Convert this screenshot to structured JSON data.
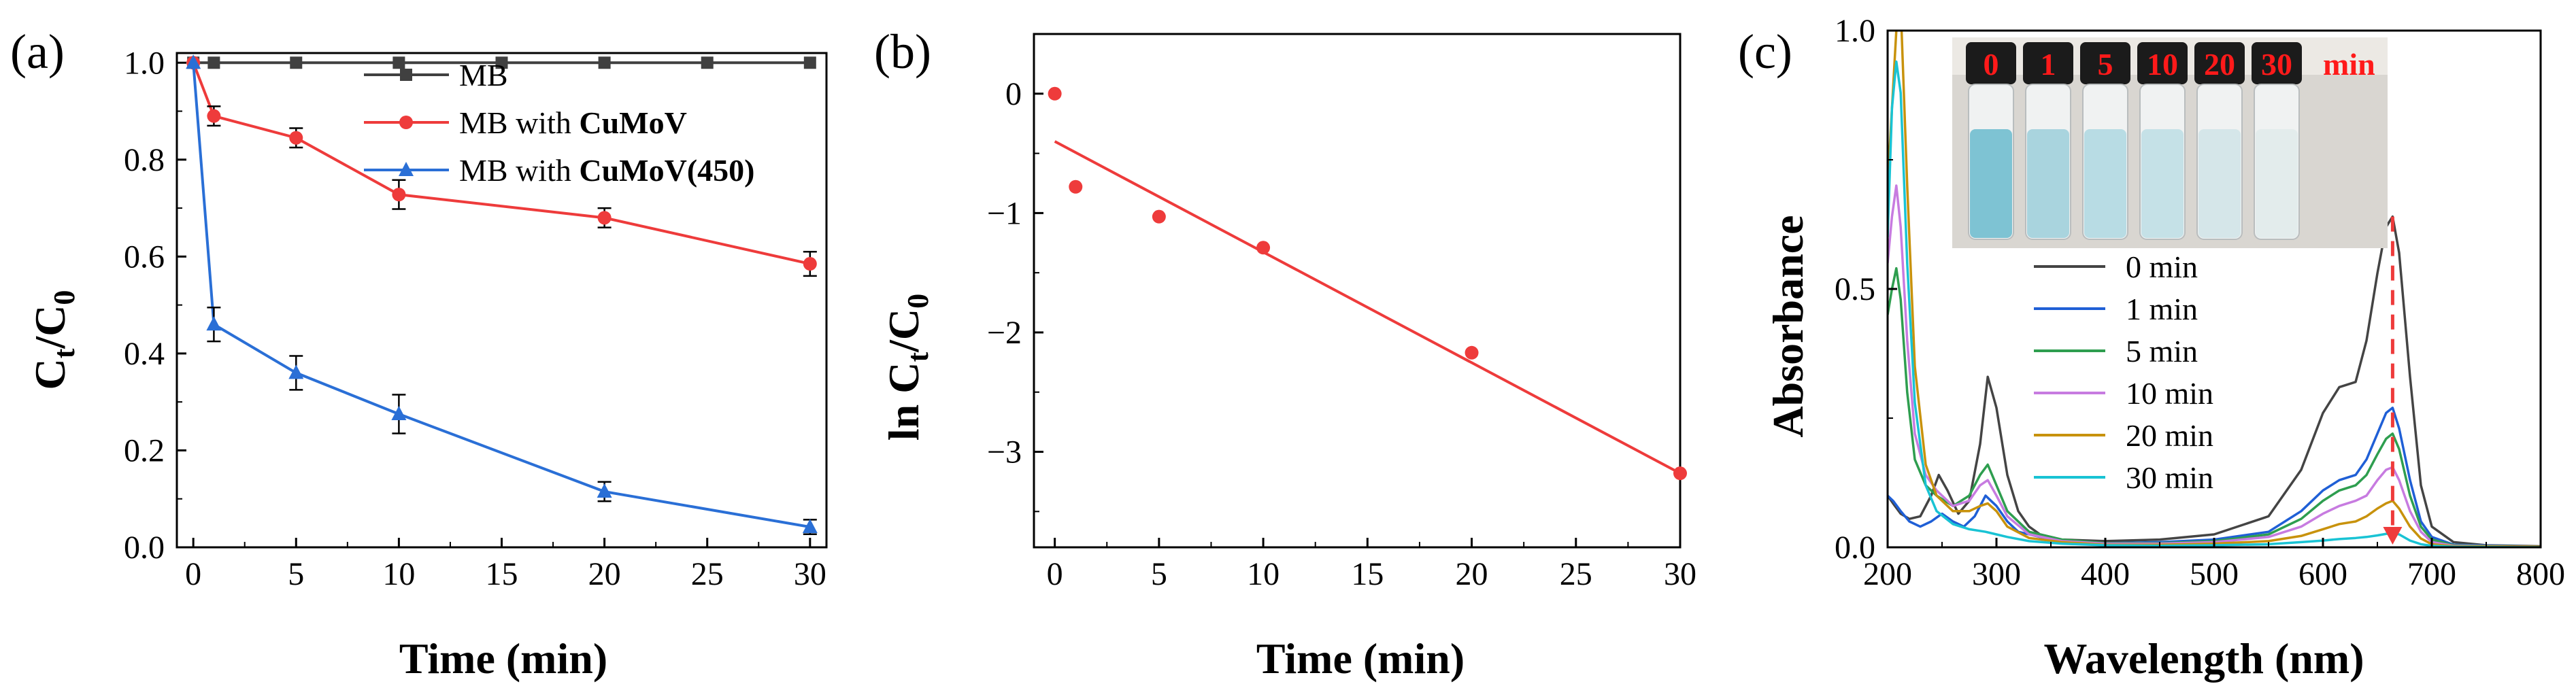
{
  "panels": [
    {
      "id": "a",
      "label": "(a)",
      "xlabel": "Time (min)",
      "ylabel_main": "C",
      "ylabel_sub1": "t",
      "ylabel_mid": "/C",
      "ylabel_sub2": "0",
      "x_ticks": [
        "0",
        "5",
        "10",
        "15",
        "20",
        "25",
        "30"
      ],
      "y_ticks": [
        "0.0",
        "0.2",
        "0.4",
        "0.6",
        "0.8",
        "1.0"
      ]
    },
    {
      "id": "b",
      "label": "(b)",
      "xlabel": "Time  (min)",
      "ylabel_main": "ln C",
      "ylabel_sub1": "t",
      "ylabel_mid": "/C",
      "ylabel_sub2": "0",
      "x_ticks": [
        "0",
        "5",
        "10",
        "15",
        "20",
        "25",
        "30"
      ],
      "y_ticks": [
        "0",
        "−1",
        "−2",
        "−3"
      ]
    },
    {
      "id": "c",
      "label": "(c)",
      "xlabel": "Wavelength (nm)",
      "ylabel": "Absorbance",
      "x_ticks": [
        "200",
        "300",
        "400",
        "500",
        "600",
        "700",
        "800"
      ],
      "y_ticks": [
        "0.0",
        "0.5",
        "1.0"
      ],
      "inset": {
        "vial_labels": [
          "0",
          "1",
          "5",
          "10",
          "20",
          "30"
        ],
        "unit": "min",
        "vial_colors": [
          "#7ec3d3",
          "#a9d4de",
          "#b8dce4",
          "#c5e1e7",
          "#d5e6e9",
          "#e3ecec"
        ]
      }
    }
  ],
  "chart_data": [
    {
      "type": "line",
      "panel": "a",
      "xlabel": "Time (min)",
      "ylabel": "Ct/C0",
      "xlim": [
        0,
        30
      ],
      "ylim": [
        0,
        1.0
      ],
      "legend_position": "top-right",
      "series": [
        {
          "name": "MB",
          "name_plain": "MB",
          "name_bold": "",
          "color": "#404040",
          "marker": "square",
          "x": [
            0,
            1,
            5,
            10,
            15,
            20,
            25,
            30
          ],
          "y": [
            1.0,
            1.0,
            1.0,
            1.0,
            1.0,
            1.0,
            1.0,
            1.0
          ],
          "err": []
        },
        {
          "name": "MB with CuMoV",
          "name_plain": "MB with ",
          "name_bold": "CuMoV",
          "color": "#ee3b3b",
          "marker": "circle",
          "x": [
            0,
            1,
            5,
            10,
            20,
            30
          ],
          "y": [
            1.0,
            0.89,
            0.845,
            0.728,
            0.68,
            0.585
          ],
          "err": [
            0,
            0.02,
            0.02,
            0.03,
            0.02,
            0.025
          ]
        },
        {
          "name": "MB with CuMoV(450)",
          "name_plain": "MB with ",
          "name_bold": "CuMoV(450)",
          "color": "#2a6fd6",
          "marker": "triangle",
          "x": [
            0,
            1,
            5,
            10,
            20,
            30
          ],
          "y": [
            1.0,
            0.46,
            0.36,
            0.275,
            0.115,
            0.042
          ],
          "err": [
            0,
            0.035,
            0.035,
            0.04,
            0.02,
            0.015
          ]
        }
      ]
    },
    {
      "type": "scatter",
      "panel": "b",
      "xlabel": "Time  (min)",
      "ylabel": "ln Ct/C0",
      "xlim": [
        -1,
        30
      ],
      "ylim": [
        -3.8,
        0.5
      ],
      "points": {
        "color": "#ee3b3b",
        "x": [
          0,
          1,
          5,
          10,
          20,
          30
        ],
        "y": [
          0.0,
          -0.78,
          -1.03,
          -1.29,
          -2.17,
          -3.18
        ]
      },
      "fit_line": {
        "color": "#ee3b3b",
        "x": [
          0,
          30
        ],
        "y": [
          -0.4,
          -3.18
        ]
      }
    },
    {
      "type": "line",
      "panel": "c",
      "xlabel": "Wavelength (nm)",
      "ylabel": "Absorbance",
      "xlim": [
        200,
        800
      ],
      "ylim": [
        0,
        1.0
      ],
      "legend_position": "center",
      "series": [
        {
          "name": "0 min",
          "color": "#444444",
          "x": [
            200,
            205,
            212,
            220,
            230,
            240,
            247,
            255,
            265,
            275,
            285,
            292,
            300,
            310,
            320,
            330,
            340,
            360,
            400,
            450,
            500,
            550,
            580,
            600,
            615,
            630,
            640,
            650,
            658,
            664,
            670,
            680,
            690,
            700,
            720,
            750,
            800
          ],
          "y": [
            0.1,
            0.085,
            0.065,
            0.055,
            0.06,
            0.1,
            0.14,
            0.11,
            0.065,
            0.09,
            0.2,
            0.33,
            0.27,
            0.14,
            0.07,
            0.04,
            0.025,
            0.015,
            0.012,
            0.015,
            0.025,
            0.06,
            0.15,
            0.26,
            0.31,
            0.32,
            0.4,
            0.53,
            0.62,
            0.64,
            0.57,
            0.33,
            0.12,
            0.04,
            0.01,
            0.004,
            0.002
          ]
        },
        {
          "name": "1 min",
          "color": "#1f5fd6",
          "x": [
            200,
            205,
            212,
            220,
            230,
            240,
            250,
            260,
            270,
            280,
            290,
            300,
            310,
            320,
            340,
            360,
            400,
            450,
            500,
            550,
            580,
            600,
            615,
            630,
            640,
            650,
            658,
            664,
            670,
            680,
            690,
            700,
            720,
            800
          ],
          "y": [
            0.1,
            0.09,
            0.07,
            0.05,
            0.04,
            0.05,
            0.065,
            0.05,
            0.04,
            0.06,
            0.1,
            0.08,
            0.05,
            0.03,
            0.02,
            0.012,
            0.008,
            0.01,
            0.015,
            0.03,
            0.07,
            0.11,
            0.13,
            0.14,
            0.17,
            0.22,
            0.26,
            0.27,
            0.23,
            0.13,
            0.05,
            0.02,
            0.005,
            0.001
          ]
        },
        {
          "name": "5 min",
          "color": "#2e9e4f",
          "x": [
            200,
            204,
            208,
            212,
            218,
            225,
            235,
            245,
            260,
            275,
            285,
            292,
            300,
            310,
            330,
            360,
            400,
            450,
            500,
            550,
            580,
            600,
            615,
            630,
            640,
            650,
            658,
            664,
            670,
            680,
            690,
            700,
            720,
            800
          ],
          "y": [
            0.45,
            0.5,
            0.54,
            0.48,
            0.3,
            0.17,
            0.12,
            0.1,
            0.08,
            0.1,
            0.14,
            0.16,
            0.12,
            0.07,
            0.03,
            0.015,
            0.008,
            0.008,
            0.012,
            0.025,
            0.055,
            0.09,
            0.11,
            0.12,
            0.14,
            0.18,
            0.21,
            0.22,
            0.19,
            0.1,
            0.04,
            0.015,
            0.004,
            0.001
          ]
        },
        {
          "name": "10 min",
          "color": "#c77be0",
          "x": [
            200,
            204,
            208,
            212,
            218,
            225,
            235,
            245,
            260,
            275,
            285,
            292,
            300,
            310,
            330,
            360,
            400,
            450,
            500,
            550,
            580,
            600,
            615,
            630,
            640,
            650,
            658,
            664,
            670,
            680,
            690,
            700,
            720,
            800
          ],
          "y": [
            0.55,
            0.64,
            0.7,
            0.62,
            0.4,
            0.22,
            0.14,
            0.11,
            0.08,
            0.09,
            0.12,
            0.13,
            0.1,
            0.06,
            0.025,
            0.012,
            0.007,
            0.007,
            0.01,
            0.02,
            0.04,
            0.065,
            0.08,
            0.09,
            0.1,
            0.13,
            0.15,
            0.155,
            0.13,
            0.07,
            0.03,
            0.01,
            0.003,
            0.001
          ]
        },
        {
          "name": "20 min",
          "color": "#c8920c",
          "x": [
            200,
            204,
            208,
            212,
            218,
            225,
            235,
            245,
            260,
            275,
            285,
            292,
            300,
            310,
            330,
            360,
            400,
            450,
            500,
            550,
            580,
            600,
            615,
            630,
            640,
            650,
            658,
            664,
            670,
            680,
            690,
            700,
            720,
            800
          ],
          "y": [
            0.7,
            0.85,
            1.0,
            1.05,
            0.7,
            0.35,
            0.16,
            0.1,
            0.07,
            0.07,
            0.08,
            0.085,
            0.07,
            0.04,
            0.018,
            0.01,
            0.005,
            0.005,
            0.007,
            0.012,
            0.022,
            0.035,
            0.045,
            0.05,
            0.06,
            0.075,
            0.085,
            0.09,
            0.075,
            0.04,
            0.017,
            0.006,
            0.002,
            0.001
          ]
        },
        {
          "name": "30 min",
          "color": "#19c3d4",
          "x": [
            200,
            204,
            208,
            212,
            218,
            225,
            235,
            245,
            260,
            275,
            290,
            300,
            310,
            330,
            360,
            400,
            450,
            500,
            550,
            580,
            600,
            615,
            630,
            640,
            650,
            658,
            664,
            670,
            680,
            690,
            700,
            720,
            800
          ],
          "y": [
            0.6,
            0.85,
            0.94,
            0.88,
            0.55,
            0.28,
            0.12,
            0.07,
            0.045,
            0.035,
            0.03,
            0.025,
            0.02,
            0.012,
            0.007,
            0.004,
            0.003,
            0.004,
            0.006,
            0.01,
            0.013,
            0.016,
            0.018,
            0.02,
            0.023,
            0.026,
            0.028,
            0.025,
            0.013,
            0.006,
            0.003,
            0.001,
            0.0
          ]
        }
      ],
      "annotation": {
        "arrow_color": "#ee3b3b",
        "arrow_x": 664,
        "arrow_y_from": 0.64,
        "arrow_y_to": 0.0
      }
    }
  ]
}
